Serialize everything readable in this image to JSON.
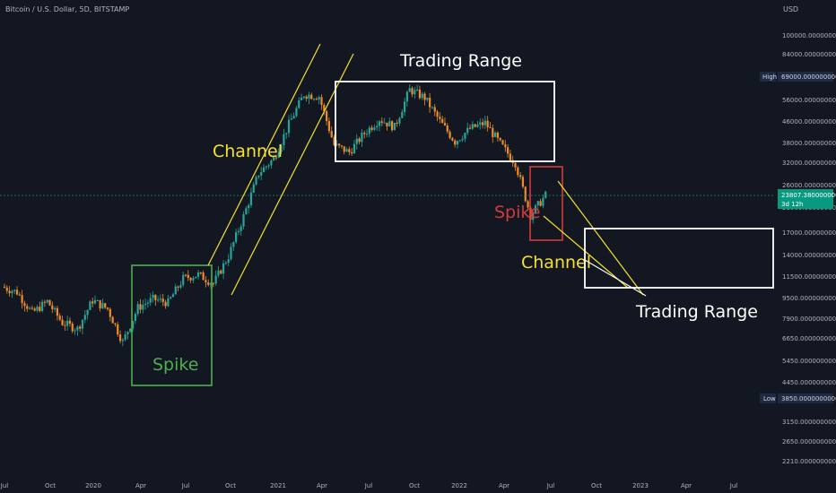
{
  "header": {
    "title": "Bitcoin / U.S. Dollar, 5D, BITSTAMP",
    "currency": "USD"
  },
  "price_axis": {
    "ticks": [
      "100000.0000000000",
      "84000.0000000000",
      "69000.0000000000",
      "56000.0000000000",
      "46000.0000000000",
      "38000.0000000000",
      "32000.0000000000",
      "26000.0000000000",
      "21000.0000000000",
      "17000.0000000000",
      "14000.0000000000",
      "11500.0000000000",
      "9500.0000000000",
      "7900.0000000000",
      "6650.0000000000",
      "5450.0000000000",
      "4450.0000000000",
      "3850.0000000000",
      "3150.0000000000",
      "2650.0000000000",
      "2210.0000000000"
    ],
    "high_label": "High",
    "high_value": "69000.0000000000",
    "low_label": "Low",
    "low_value": "3850.0000000000",
    "last_price": "23807.3800000000",
    "countdown": "3d 12h"
  },
  "time_axis": {
    "labels": [
      "Jul",
      "Oct",
      "2020",
      "Apr",
      "Jul",
      "Oct",
      "2021",
      "Apr",
      "Jul",
      "Oct",
      "2022",
      "Apr",
      "Jul",
      "Oct",
      "2023",
      "Apr",
      "Jul"
    ]
  },
  "annotations": {
    "channel_1": "Channel",
    "trading_range_1": "Trading Range",
    "spike_1": "Spike",
    "spike_2": "Spike",
    "channel_2": "Channel",
    "trading_range_2": "Trading Range"
  },
  "colors": {
    "background": "#131722",
    "up": "#26a69a",
    "down": "#ef8c28",
    "yellow": "#f5e12e",
    "white": "#ffffff",
    "green_box": "#4caf50",
    "red_box": "#d23b3b",
    "last_price_bg": "#089981"
  },
  "chart_data": {
    "type": "candlestick",
    "symbol": "BTCUSD",
    "interval": "5D",
    "x_start": "2019-07",
    "x_end": "2023-07",
    "y_scale": "log",
    "close_estimates": [
      {
        "t": "2019-07",
        "c": 10500
      },
      {
        "t": "2019-08",
        "c": 10000
      },
      {
        "t": "2019-09",
        "c": 8300
      },
      {
        "t": "2019-10",
        "c": 9200
      },
      {
        "t": "2019-11",
        "c": 7600
      },
      {
        "t": "2019-12",
        "c": 7200
      },
      {
        "t": "2020-01",
        "c": 9300
      },
      {
        "t": "2020-02",
        "c": 8600
      },
      {
        "t": "2020-03",
        "c": 6400
      },
      {
        "t": "2020-04",
        "c": 8700
      },
      {
        "t": "2020-05",
        "c": 9400
      },
      {
        "t": "2020-06",
        "c": 9100
      },
      {
        "t": "2020-07",
        "c": 11300
      },
      {
        "t": "2020-08",
        "c": 11700
      },
      {
        "t": "2020-09",
        "c": 10800
      },
      {
        "t": "2020-10",
        "c": 13800
      },
      {
        "t": "2020-11",
        "c": 19700
      },
      {
        "t": "2020-12",
        "c": 29000
      },
      {
        "t": "2021-01",
        "c": 33000
      },
      {
        "t": "2021-02",
        "c": 45000
      },
      {
        "t": "2021-03",
        "c": 58800
      },
      {
        "t": "2021-04",
        "c": 57700
      },
      {
        "t": "2021-05",
        "c": 37300
      },
      {
        "t": "2021-06",
        "c": 35000
      },
      {
        "t": "2021-07",
        "c": 41500
      },
      {
        "t": "2021-08",
        "c": 47100
      },
      {
        "t": "2021-09",
        "c": 43800
      },
      {
        "t": "2021-10",
        "c": 61300
      },
      {
        "t": "2021-11",
        "c": 57000
      },
      {
        "t": "2021-12",
        "c": 46200
      },
      {
        "t": "2022-01",
        "c": 38500
      },
      {
        "t": "2022-02",
        "c": 43200
      },
      {
        "t": "2022-03",
        "c": 45500
      },
      {
        "t": "2022-04",
        "c": 37700
      },
      {
        "t": "2022-05",
        "c": 31800
      },
      {
        "t": "2022-06",
        "c": 19900
      },
      {
        "t": "2022-07",
        "c": 23807
      }
    ]
  }
}
